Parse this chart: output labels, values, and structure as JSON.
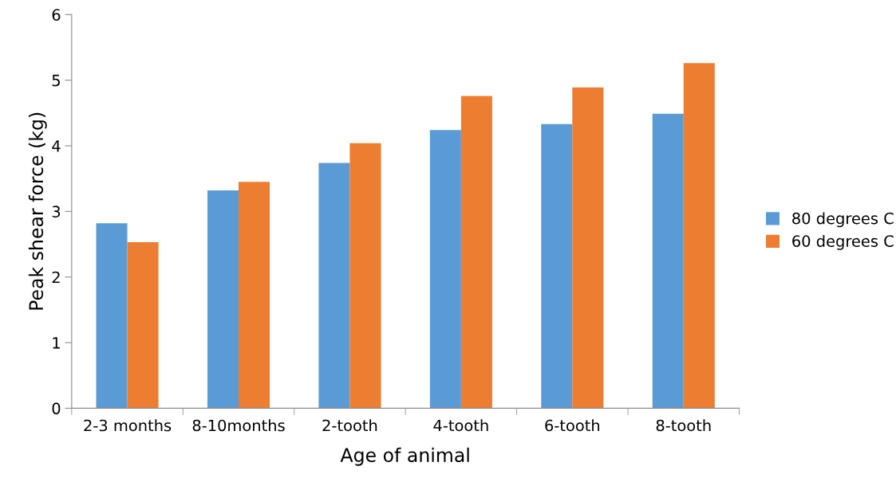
{
  "chart_data": {
    "type": "bar",
    "xlabel": "Age of animal",
    "ylabel": "Peak shear force (kg)",
    "categories": [
      "2-3 months",
      "8-10months",
      "2-tooth",
      "4-tooth",
      "6-tooth",
      "8-tooth"
    ],
    "series": [
      {
        "name": "80 degrees C",
        "color": "#5b9bd5",
        "values": [
          2.82,
          3.32,
          3.74,
          4.24,
          4.33,
          4.49
        ]
      },
      {
        "name": "60 degrees C",
        "color": "#ed7d31",
        "values": [
          2.53,
          3.45,
          4.04,
          4.76,
          4.89,
          5.26
        ]
      }
    ],
    "ylim": [
      0,
      6
    ],
    "yticks": [
      0,
      1,
      2,
      3,
      4,
      5,
      6
    ],
    "grid": false,
    "legend": "right"
  }
}
